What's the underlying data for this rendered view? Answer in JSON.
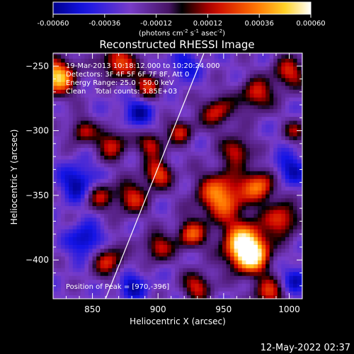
{
  "chart_data": {
    "type": "heatmap",
    "title": "Reconstructed RHESSI Image",
    "xlabel": "Heliocentric X (arcsec)",
    "ylabel": "Heliocentric Y (arcsec)",
    "xlim": [
      820,
      1010
    ],
    "ylim": [
      -430,
      -240
    ],
    "x_ticks": [
      850,
      900,
      950,
      1000
    ],
    "y_ticks": [
      -250,
      -300,
      -350,
      -400
    ],
    "colorbar": {
      "range": [
        -0.0006,
        0.0006
      ],
      "ticks": [
        "-0.00060",
        "-0.00036",
        "-0.00012",
        "0.00012",
        "0.00036",
        "0.00060"
      ],
      "unit_text": "(photons cm",
      "unit_sup1": "-2",
      "unit_mid": " s",
      "unit_sup2": "-1",
      "unit_mid2": " asec",
      "unit_sup3": "-2",
      "unit_end": ")",
      "colormap": "rhessi-rainbow"
    },
    "annotations": [
      "19-Mar-2013 10:18:12.000 to 10:20:24.000",
      "Detectors: 3F 4F 5F 6F 7F 8F, Att 0",
      "Energy Range: 25.0 - 50.0 keV",
      "Clean    Total counts: 3.85E+03"
    ],
    "peak_label": "Position of Peak = [970,-396]",
    "peak": [
      970,
      -396
    ],
    "limb_line": [
      [
        860,
        -430
      ],
      [
        935,
        -240
      ]
    ],
    "bright_sources": [
      {
        "x": 823,
        "y": -258,
        "r": 10,
        "v": 0.0006
      },
      {
        "x": 870,
        "y": -247,
        "r": 9,
        "v": 0.0004
      },
      {
        "x": 892,
        "y": -265,
        "r": 8,
        "v": 0.0003
      },
      {
        "x": 842,
        "y": -300,
        "r": 7,
        "v": 0.00025
      },
      {
        "x": 865,
        "y": -310,
        "r": 9,
        "v": 0.00028
      },
      {
        "x": 895,
        "y": -310,
        "r": 7,
        "v": 0.0003
      },
      {
        "x": 917,
        "y": -300,
        "r": 7,
        "v": 0.00028
      },
      {
        "x": 900,
        "y": -333,
        "r": 8,
        "v": 0.00036
      },
      {
        "x": 855,
        "y": -350,
        "r": 8,
        "v": 0.00026
      },
      {
        "x": 880,
        "y": -352,
        "r": 9,
        "v": 0.0003
      },
      {
        "x": 862,
        "y": -400,
        "r": 9,
        "v": 0.0003
      },
      {
        "x": 900,
        "y": -390,
        "r": 8,
        "v": 0.00028
      },
      {
        "x": 925,
        "y": -380,
        "r": 8,
        "v": 0.00036
      },
      {
        "x": 948,
        "y": -350,
        "r": 13,
        "v": 0.0005
      },
      {
        "x": 978,
        "y": -342,
        "r": 9,
        "v": 0.0004
      },
      {
        "x": 965,
        "y": -385,
        "r": 12,
        "v": 0.00045
      },
      {
        "x": 970,
        "y": -396,
        "r": 10,
        "v": 0.0006
      },
      {
        "x": 995,
        "y": -368,
        "r": 9,
        "v": 0.00036
      },
      {
        "x": 945,
        "y": -285,
        "r": 9,
        "v": 0.0003
      },
      {
        "x": 975,
        "y": -272,
        "r": 9,
        "v": 0.00032
      },
      {
        "x": 1000,
        "y": -255,
        "r": 9,
        "v": 0.0003
      },
      {
        "x": 960,
        "y": -315,
        "r": 8,
        "v": 0.0003
      },
      {
        "x": 930,
        "y": -420,
        "r": 8,
        "v": 0.0003
      },
      {
        "x": 985,
        "y": -425,
        "r": 9,
        "v": 0.0003
      },
      {
        "x": 1005,
        "y": -300,
        "r": 6,
        "v": 0.0002
      }
    ],
    "dark_sources": [
      {
        "x": 840,
        "y": -340,
        "r": 10,
        "v": -0.00036
      },
      {
        "x": 845,
        "y": -385,
        "r": 9,
        "v": -0.00036
      },
      {
        "x": 885,
        "y": -285,
        "r": 9,
        "v": -0.0003
      },
      {
        "x": 880,
        "y": -420,
        "r": 8,
        "v": -0.0003
      },
      {
        "x": 1000,
        "y": -330,
        "r": 9,
        "v": -0.0003
      },
      {
        "x": 1005,
        "y": -415,
        "r": 8,
        "v": -0.0003
      },
      {
        "x": 920,
        "y": -250,
        "r": 8,
        "v": -0.00025
      }
    ]
  },
  "footer_timestamp": "12-May-2022 02:37"
}
